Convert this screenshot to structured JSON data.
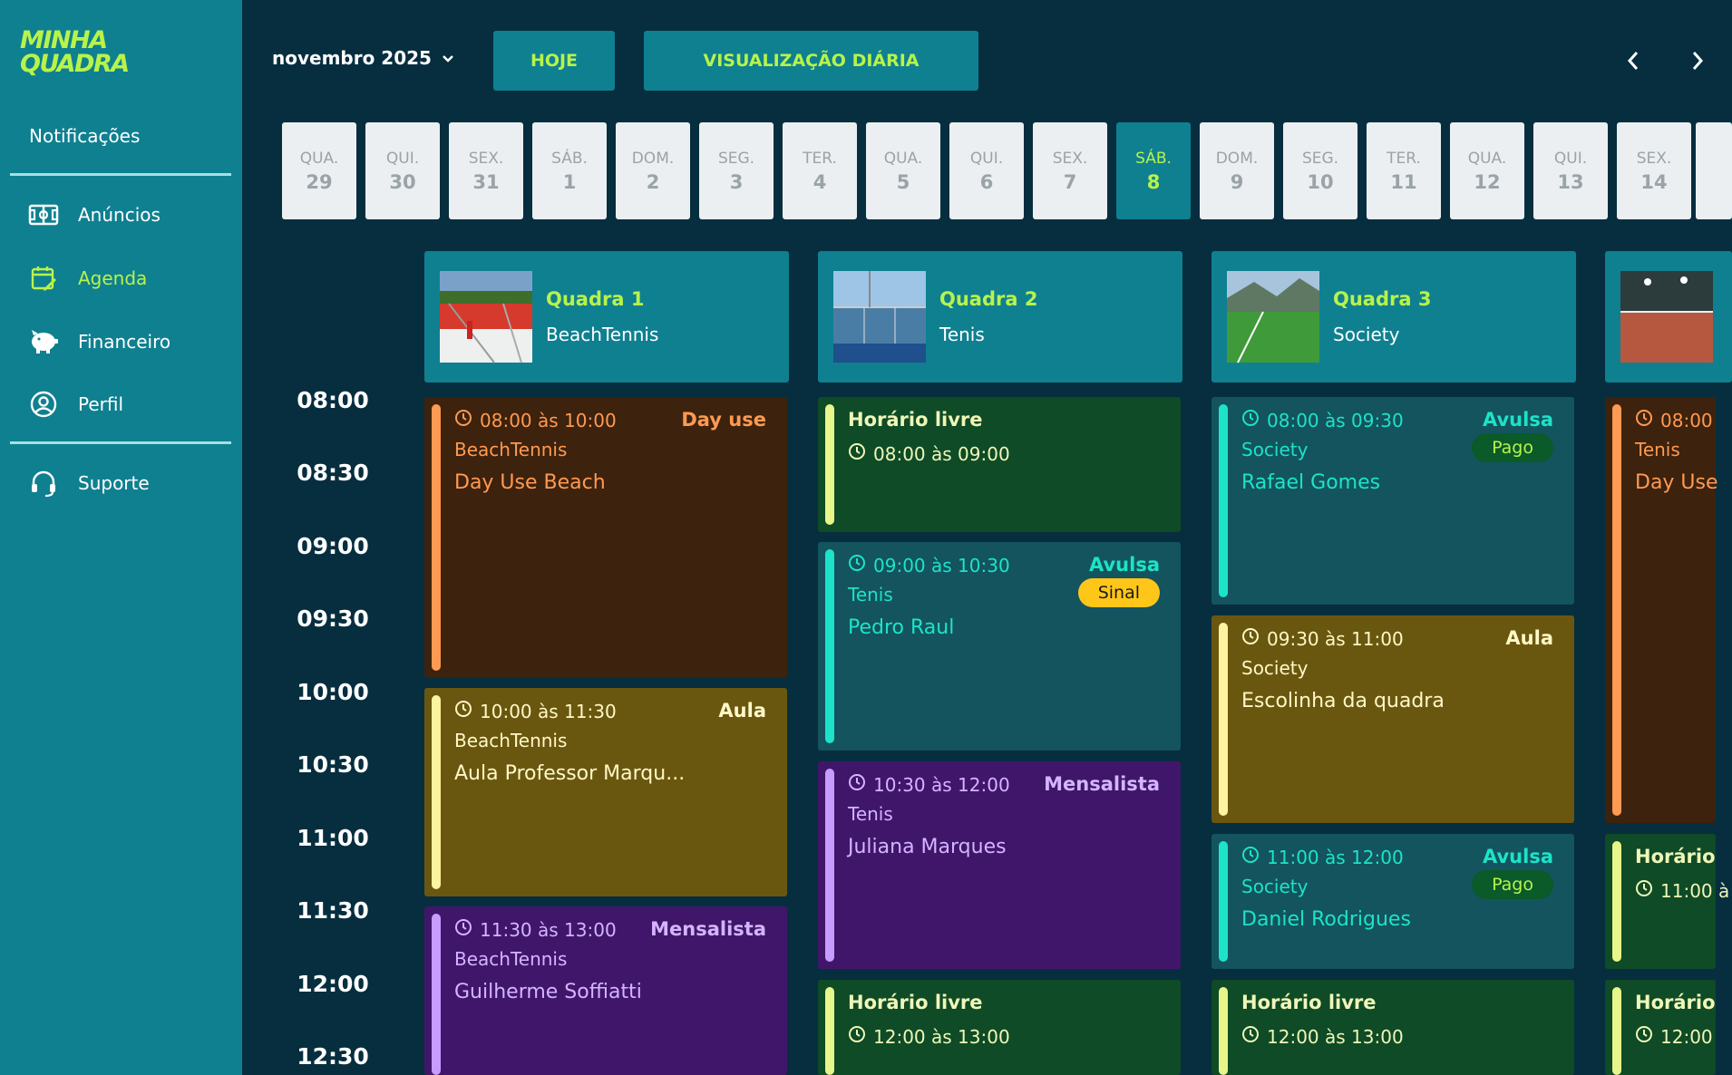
{
  "logo": {
    "line1": "MINHA",
    "line2": "QUADRA"
  },
  "sidebar": {
    "notifications": "Notificações",
    "items": [
      {
        "label": "Anúncios",
        "icon": "soccer-field-icon"
      },
      {
        "label": "Agenda",
        "icon": "calendar-edit-icon",
        "active": true
      },
      {
        "label": "Financeiro",
        "icon": "piggy-bank-icon"
      },
      {
        "label": "Perfil",
        "icon": "user-circle-icon"
      }
    ],
    "support": {
      "label": "Suporte",
      "icon": "headset-icon"
    }
  },
  "topbar": {
    "month": "novembro 2025",
    "today_label": "HOJE",
    "view_label": "VISUALIZAÇÃO DIÁRIA"
  },
  "days": [
    {
      "dw": "QUA.",
      "dn": "29"
    },
    {
      "dw": "QUI.",
      "dn": "30"
    },
    {
      "dw": "SEX.",
      "dn": "31"
    },
    {
      "dw": "SÁB.",
      "dn": "1"
    },
    {
      "dw": "DOM.",
      "dn": "2"
    },
    {
      "dw": "SEG.",
      "dn": "3"
    },
    {
      "dw": "TER.",
      "dn": "4"
    },
    {
      "dw": "QUA.",
      "dn": "5"
    },
    {
      "dw": "QUI.",
      "dn": "6"
    },
    {
      "dw": "SEX.",
      "dn": "7"
    },
    {
      "dw": "SÁB.",
      "dn": "8",
      "selected": true
    },
    {
      "dw": "DOM.",
      "dn": "9"
    },
    {
      "dw": "SEG.",
      "dn": "10"
    },
    {
      "dw": "TER.",
      "dn": "11"
    },
    {
      "dw": "QUA.",
      "dn": "12"
    },
    {
      "dw": "QUI.",
      "dn": "13"
    },
    {
      "dw": "SEX.",
      "dn": "14"
    }
  ],
  "times": [
    "08:00",
    "08:30",
    "09:00",
    "09:30",
    "10:00",
    "10:30",
    "11:00",
    "11:30",
    "12:00",
    "12:30"
  ],
  "courts": [
    {
      "name": "Quadra 1",
      "sport": "BeachTennis"
    },
    {
      "name": "Quadra 2",
      "sport": "Tenis"
    },
    {
      "name": "Quadra 3",
      "sport": "Society"
    }
  ],
  "events": {
    "q1": [
      {
        "time": "08:00 às 10:00",
        "type": "Day use",
        "sport": "BeachTennis",
        "who": "Day Use Beach"
      },
      {
        "time": "10:00 às 11:30",
        "type": "Aula",
        "sport": "BeachTennis",
        "who": "Aula Professor Marqu..."
      },
      {
        "time": "11:30 às 13:00",
        "type": "Mensalista",
        "sport": "BeachTennis",
        "who": "Guilherme Soffiatti"
      }
    ],
    "q2": [
      {
        "title": "Horário livre",
        "time": "08:00 às 09:00"
      },
      {
        "time": "09:00 às 10:30",
        "type": "Avulsa",
        "sport": "Tenis",
        "who": "Pedro Raul",
        "badge": "Sinal"
      },
      {
        "time": "10:30 às 12:00",
        "type": "Mensalista",
        "sport": "Tenis",
        "who": "Juliana Marques"
      },
      {
        "title": "Horário livre",
        "time": "12:00 às 13:00"
      }
    ],
    "q3": [
      {
        "time": "08:00 às 09:30",
        "type": "Avulsa",
        "sport": "Society",
        "who": "Rafael Gomes",
        "badge": "Pago"
      },
      {
        "time": "09:30 às 11:00",
        "type": "Aula",
        "sport": "Society",
        "who": "Escolinha da quadra"
      },
      {
        "time": "11:00 às 12:00",
        "type": "Avulsa",
        "sport": "Society",
        "who": "Daniel Rodrigues",
        "badge": "Pago"
      },
      {
        "title": "Horário livre",
        "time": "12:00 às 13:00"
      }
    ],
    "q4": [
      {
        "time": "08:00",
        "sport": "Tenis",
        "who": "Day Use"
      },
      {
        "title": "Horário",
        "time": "11:00 à"
      },
      {
        "title": "Horário",
        "time": "12:00"
      }
    ]
  },
  "colors": {
    "accent": "#b8f34a",
    "teal": "#0f8090",
    "background": "#062e3f",
    "day_use": "#ff9a52",
    "aula": "#fff3a0",
    "mensalista": "#c79cff",
    "avulsa": "#1de3c8",
    "sinal_badge": "#ffc61a",
    "pago_badge": "#0a5a2a"
  }
}
